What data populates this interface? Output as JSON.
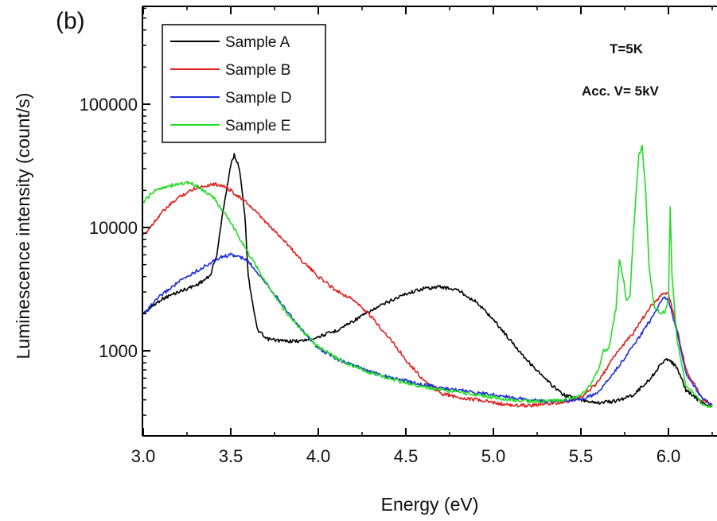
{
  "chart_data": {
    "type": "line",
    "panel_label": "(b)",
    "xlabel": "Energy (eV)",
    "ylabel": "Luminescence intensity (count/s)",
    "xlim": [
      3.0,
      6.25
    ],
    "ylim": [
      300,
      600000
    ],
    "yscale": "log",
    "x_ticks": [
      "3.0",
      "3.5",
      "4.0",
      "4.5",
      "5.0",
      "5.5",
      "6.0"
    ],
    "y_ticks": [
      "1000",
      "10000",
      "100000"
    ],
    "legend_position": "top-left",
    "grid": false,
    "annotations": [
      "T=5K",
      "Acc. V= 5kV"
    ],
    "series": [
      {
        "name": "Sample A",
        "color": "#000000",
        "x": [
          3.0,
          3.1,
          3.2,
          3.3,
          3.38,
          3.42,
          3.46,
          3.5,
          3.52,
          3.55,
          3.58,
          3.6,
          3.65,
          3.7,
          3.8,
          3.9,
          4.0,
          4.1,
          4.2,
          4.3,
          4.4,
          4.5,
          4.6,
          4.7,
          4.8,
          4.9,
          5.0,
          5.1,
          5.2,
          5.3,
          5.4,
          5.5,
          5.6,
          5.7,
          5.8,
          5.9,
          5.95,
          6.0,
          6.05,
          6.1,
          6.2,
          6.25
        ],
        "y": [
          2000,
          2600,
          3000,
          3400,
          4000,
          6000,
          15000,
          32000,
          39000,
          30000,
          13000,
          4000,
          1500,
          1250,
          1200,
          1200,
          1300,
          1450,
          1750,
          2100,
          2500,
          2900,
          3200,
          3300,
          3100,
          2500,
          1800,
          1200,
          820,
          580,
          440,
          400,
          380,
          390,
          440,
          600,
          760,
          870,
          720,
          480,
          370,
          350
        ]
      },
      {
        "name": "Sample B",
        "color": "#e02020",
        "x": [
          3.0,
          3.1,
          3.2,
          3.3,
          3.4,
          3.45,
          3.5,
          3.6,
          3.7,
          3.8,
          3.9,
          4.0,
          4.1,
          4.2,
          4.3,
          4.4,
          4.5,
          4.6,
          4.7,
          4.8,
          4.9,
          5.0,
          5.1,
          5.2,
          5.3,
          5.4,
          5.5,
          5.6,
          5.7,
          5.8,
          5.9,
          5.97,
          6.0,
          6.05,
          6.1,
          6.2,
          6.25
        ],
        "y": [
          8500,
          13000,
          17500,
          21000,
          22500,
          22000,
          20000,
          15500,
          11000,
          8000,
          5500,
          4000,
          3100,
          2600,
          1900,
          1300,
          850,
          580,
          450,
          420,
          400,
          380,
          360,
          360,
          370,
          380,
          420,
          560,
          950,
          1400,
          2300,
          2950,
          2900,
          1500,
          700,
          400,
          360
        ]
      },
      {
        "name": "Sample D",
        "color": "#1f2fd8",
        "x": [
          3.0,
          3.1,
          3.2,
          3.3,
          3.4,
          3.45,
          3.5,
          3.55,
          3.6,
          3.7,
          3.8,
          3.9,
          4.0,
          4.1,
          4.2,
          4.3,
          4.4,
          4.5,
          4.6,
          4.7,
          4.8,
          4.9,
          5.0,
          5.1,
          5.2,
          5.3,
          5.4,
          5.5,
          5.6,
          5.7,
          5.8,
          5.9,
          5.97,
          6.0,
          6.05,
          6.1,
          6.2,
          6.25
        ],
        "y": [
          2000,
          2800,
          3600,
          4400,
          5300,
          5800,
          6000,
          5800,
          5300,
          3600,
          2300,
          1500,
          1050,
          870,
          760,
          670,
          610,
          570,
          530,
          500,
          480,
          460,
          440,
          420,
          400,
          390,
          390,
          400,
          460,
          700,
          1100,
          1800,
          2700,
          2600,
          1400,
          650,
          400,
          360
        ]
      },
      {
        "name": "Sample E",
        "color": "#22dd22",
        "x": [
          3.0,
          3.05,
          3.1,
          3.2,
          3.25,
          3.3,
          3.4,
          3.5,
          3.6,
          3.7,
          3.8,
          3.9,
          4.0,
          4.1,
          4.2,
          4.3,
          4.4,
          4.5,
          4.6,
          4.7,
          4.8,
          4.9,
          5.0,
          5.1,
          5.2,
          5.3,
          5.4,
          5.5,
          5.55,
          5.6,
          5.63,
          5.66,
          5.7,
          5.72,
          5.74,
          5.76,
          5.78,
          5.8,
          5.83,
          5.85,
          5.87,
          5.89,
          5.92,
          5.95,
          5.98,
          6.0,
          6.01,
          6.02,
          6.05,
          6.1,
          6.2,
          6.25
        ],
        "y": [
          16000,
          19000,
          21000,
          22500,
          23000,
          22000,
          17500,
          11000,
          6200,
          3600,
          2200,
          1500,
          1080,
          880,
          750,
          660,
          600,
          550,
          510,
          480,
          460,
          440,
          420,
          400,
          390,
          390,
          400,
          430,
          520,
          700,
          1000,
          1050,
          2200,
          5500,
          4000,
          2600,
          2800,
          9000,
          38000,
          45000,
          20000,
          4500,
          2300,
          2000,
          2100,
          2600,
          15000,
          4000,
          1200,
          520,
          370,
          350
        ]
      }
    ]
  }
}
